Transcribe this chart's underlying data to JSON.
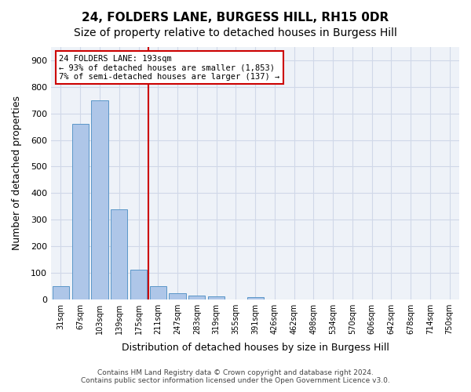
{
  "title": "24, FOLDERS LANE, BURGESS HILL, RH15 0DR",
  "subtitle": "Size of property relative to detached houses in Burgess Hill",
  "xlabel": "Distribution of detached houses by size in Burgess Hill",
  "ylabel": "Number of detached properties",
  "footer_line1": "Contains HM Land Registry data © Crown copyright and database right 2024.",
  "footer_line2": "Contains public sector information licensed under the Open Government Licence v3.0.",
  "bin_labels": [
    "31sqm",
    "67sqm",
    "103sqm",
    "139sqm",
    "175sqm",
    "211sqm",
    "247sqm",
    "283sqm",
    "319sqm",
    "355sqm",
    "391sqm",
    "426sqm",
    "462sqm",
    "498sqm",
    "534sqm",
    "570sqm",
    "606sqm",
    "642sqm",
    "678sqm",
    "714sqm",
    "750sqm"
  ],
  "bar_values": [
    50,
    660,
    750,
    340,
    110,
    50,
    22,
    15,
    10,
    0,
    8,
    0,
    0,
    0,
    0,
    0,
    0,
    0,
    0,
    0,
    0
  ],
  "bar_color": "#aec6e8",
  "bar_edge_color": "#5a96c8",
  "grid_color": "#d0d8e8",
  "background_color": "#eef2f8",
  "ylim": [
    0,
    950
  ],
  "yticks": [
    0,
    100,
    200,
    300,
    400,
    500,
    600,
    700,
    800,
    900
  ],
  "property_size": 193,
  "property_label": "24 FOLDERS LANE: 193sqm",
  "annotation_line1": "← 93% of detached houses are smaller (1,853)",
  "annotation_line2": "7% of semi-detached houses are larger (137) →",
  "vline_color": "#cc0000",
  "vline_bin_index": 5,
  "annotation_box_color": "#ffffff",
  "annotation_box_edge": "#cc0000",
  "title_fontsize": 11,
  "subtitle_fontsize": 10,
  "bar_width": 0.85
}
